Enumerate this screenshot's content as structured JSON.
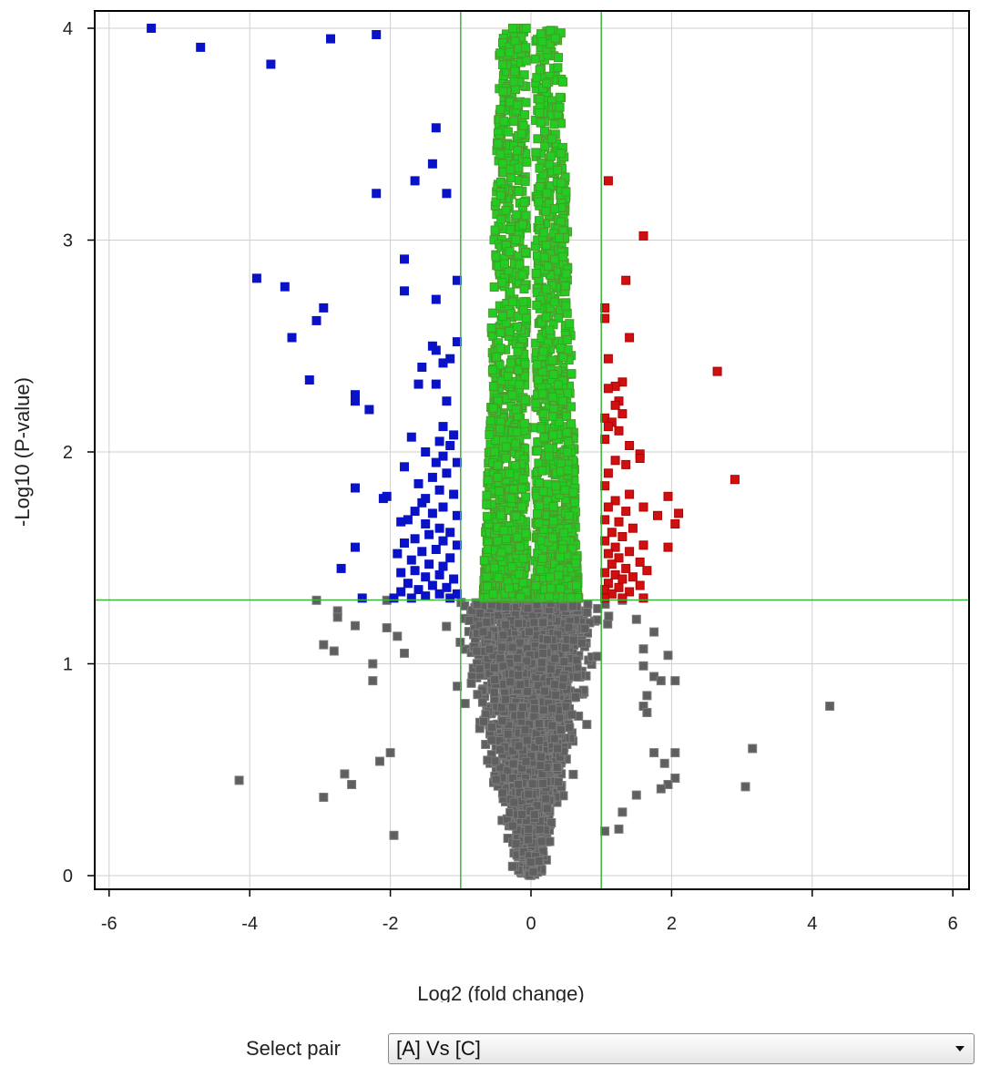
{
  "chart_data": {
    "type": "scatter",
    "title": "",
    "xlabel": "Log2 (fold change)",
    "ylabel": "-Log10 (P-value)",
    "xlim": [
      -6.2,
      6.2
    ],
    "ylim": [
      -0.05,
      4.08
    ],
    "xticks": [
      -6,
      -4,
      -2,
      0,
      2,
      4,
      6
    ],
    "yticks": [
      0,
      1,
      2,
      3,
      4
    ],
    "grid": true,
    "thresholds": {
      "log2_fold_change": [
        -1,
        1
      ],
      "neg_log10_p": 1.301
    },
    "colors": {
      "down": "#0a12c8",
      "up": "#d01010",
      "sig_small": "#22cc22",
      "not_sig": "#5f5f5f",
      "threshold_line": "#3cb43c"
    },
    "series": [
      {
        "key": "down",
        "points": [
          [
            -5.4,
            4.0
          ],
          [
            -4.7,
            3.91
          ],
          [
            -3.7,
            3.83
          ],
          [
            -2.85,
            3.95
          ],
          [
            -2.2,
            3.97
          ],
          [
            -1.35,
            3.53
          ],
          [
            -1.4,
            3.36
          ],
          [
            -1.65,
            3.28
          ],
          [
            -2.2,
            3.22
          ],
          [
            -1.2,
            3.22
          ],
          [
            -1.8,
            2.91
          ],
          [
            -1.05,
            2.81
          ],
          [
            -3.9,
            2.82
          ],
          [
            -3.5,
            2.78
          ],
          [
            -1.8,
            2.76
          ],
          [
            -1.35,
            2.72
          ],
          [
            -2.95,
            2.68
          ],
          [
            -3.05,
            2.62
          ],
          [
            -3.4,
            2.54
          ],
          [
            -1.05,
            2.52
          ],
          [
            -1.4,
            2.5
          ],
          [
            -1.35,
            2.48
          ],
          [
            -1.15,
            2.44
          ],
          [
            -1.25,
            2.42
          ],
          [
            -1.55,
            2.4
          ],
          [
            -3.15,
            2.34
          ],
          [
            -1.6,
            2.32
          ],
          [
            -1.35,
            2.32
          ],
          [
            -2.5,
            2.27
          ],
          [
            -2.5,
            2.24
          ],
          [
            -1.2,
            2.24
          ],
          [
            -2.3,
            2.2
          ],
          [
            -1.25,
            2.12
          ],
          [
            -1.1,
            2.08
          ],
          [
            -1.7,
            2.07
          ],
          [
            -1.3,
            2.05
          ],
          [
            -1.15,
            2.03
          ],
          [
            -1.5,
            2.0
          ],
          [
            -1.25,
            1.98
          ],
          [
            -1.35,
            1.95
          ],
          [
            -1.05,
            1.95
          ],
          [
            -1.8,
            1.93
          ],
          [
            -1.2,
            1.9
          ],
          [
            -1.4,
            1.88
          ],
          [
            -1.6,
            1.85
          ],
          [
            -2.5,
            1.83
          ],
          [
            -1.3,
            1.82
          ],
          [
            -1.1,
            1.8
          ],
          [
            -2.05,
            1.79
          ],
          [
            -1.5,
            1.78
          ],
          [
            -2.1,
            1.78
          ],
          [
            -1.55,
            1.76
          ],
          [
            -1.25,
            1.74
          ],
          [
            -1.65,
            1.72
          ],
          [
            -1.4,
            1.71
          ],
          [
            -1.05,
            1.7
          ],
          [
            -1.75,
            1.68
          ],
          [
            -1.85,
            1.67
          ],
          [
            -1.5,
            1.66
          ],
          [
            -1.3,
            1.64
          ],
          [
            -1.15,
            1.62
          ],
          [
            -1.45,
            1.61
          ],
          [
            -1.65,
            1.59
          ],
          [
            -1.25,
            1.58
          ],
          [
            -1.8,
            1.57
          ],
          [
            -2.5,
            1.55
          ],
          [
            -1.05,
            1.56
          ],
          [
            -1.35,
            1.54
          ],
          [
            -1.55,
            1.53
          ],
          [
            -1.9,
            1.52
          ],
          [
            -1.15,
            1.5
          ],
          [
            -1.7,
            1.49
          ],
          [
            -1.45,
            1.47
          ],
          [
            -1.25,
            1.46
          ],
          [
            -2.7,
            1.45
          ],
          [
            -1.65,
            1.44
          ],
          [
            -1.85,
            1.43
          ],
          [
            -1.3,
            1.42
          ],
          [
            -1.5,
            1.41
          ],
          [
            -1.1,
            1.4
          ],
          [
            -1.75,
            1.38
          ],
          [
            -1.4,
            1.37
          ],
          [
            -1.2,
            1.36
          ],
          [
            -1.6,
            1.35
          ],
          [
            -1.85,
            1.34
          ],
          [
            -1.3,
            1.33
          ],
          [
            -1.05,
            1.33
          ],
          [
            -1.5,
            1.32
          ],
          [
            -2.4,
            1.31
          ],
          [
            -1.7,
            1.31
          ],
          [
            -1.15,
            1.31
          ],
          [
            -1.95,
            1.31
          ]
        ]
      },
      {
        "key": "up",
        "points": [
          [
            1.1,
            3.28
          ],
          [
            1.6,
            3.02
          ],
          [
            1.35,
            2.81
          ],
          [
            1.05,
            2.68
          ],
          [
            1.05,
            2.63
          ],
          [
            1.4,
            2.54
          ],
          [
            1.1,
            2.44
          ],
          [
            2.65,
            2.38
          ],
          [
            1.3,
            2.33
          ],
          [
            1.2,
            2.31
          ],
          [
            1.1,
            2.3
          ],
          [
            1.25,
            2.24
          ],
          [
            1.2,
            2.22
          ],
          [
            1.3,
            2.18
          ],
          [
            1.05,
            2.16
          ],
          [
            1.15,
            2.14
          ],
          [
            1.1,
            2.12
          ],
          [
            1.25,
            2.1
          ],
          [
            1.05,
            2.06
          ],
          [
            1.4,
            2.03
          ],
          [
            1.55,
            1.99
          ],
          [
            1.55,
            1.97
          ],
          [
            1.2,
            1.96
          ],
          [
            1.35,
            1.94
          ],
          [
            1.1,
            1.9
          ],
          [
            2.9,
            1.87
          ],
          [
            1.05,
            1.84
          ],
          [
            1.4,
            1.8
          ],
          [
            1.95,
            1.79
          ],
          [
            1.2,
            1.77
          ],
          [
            1.1,
            1.74
          ],
          [
            1.6,
            1.74
          ],
          [
            1.35,
            1.72
          ],
          [
            2.1,
            1.71
          ],
          [
            1.8,
            1.7
          ],
          [
            1.05,
            1.68
          ],
          [
            1.25,
            1.67
          ],
          [
            2.05,
            1.66
          ],
          [
            1.45,
            1.64
          ],
          [
            1.15,
            1.62
          ],
          [
            1.3,
            1.6
          ],
          [
            1.05,
            1.58
          ],
          [
            1.6,
            1.56
          ],
          [
            1.2,
            1.55
          ],
          [
            1.95,
            1.55
          ],
          [
            1.4,
            1.53
          ],
          [
            1.1,
            1.52
          ],
          [
            1.25,
            1.5
          ],
          [
            1.55,
            1.48
          ],
          [
            1.15,
            1.47
          ],
          [
            1.35,
            1.45
          ],
          [
            1.65,
            1.44
          ],
          [
            1.05,
            1.43
          ],
          [
            1.2,
            1.42
          ],
          [
            1.45,
            1.41
          ],
          [
            1.3,
            1.4
          ],
          [
            1.1,
            1.38
          ],
          [
            1.55,
            1.37
          ],
          [
            1.25,
            1.36
          ],
          [
            1.05,
            1.35
          ],
          [
            1.4,
            1.34
          ],
          [
            1.15,
            1.33
          ],
          [
            1.6,
            1.31
          ],
          [
            1.3,
            1.31
          ],
          [
            1.05,
            1.31
          ]
        ]
      },
      {
        "key": "not_sig_outliers",
        "points": [
          [
            -3.05,
            1.3
          ],
          [
            -2.75,
            1.25
          ],
          [
            -2.75,
            1.22
          ],
          [
            -2.5,
            1.18
          ],
          [
            -2.95,
            1.09
          ],
          [
            -2.8,
            1.06
          ],
          [
            -2.25,
            1.0
          ],
          [
            -2.25,
            0.92
          ],
          [
            -4.15,
            0.45
          ],
          [
            -2.65,
            0.48
          ],
          [
            -2.55,
            0.43
          ],
          [
            -2.95,
            0.37
          ],
          [
            -2.15,
            0.54
          ],
          [
            -2.0,
            0.58
          ],
          [
            -1.95,
            0.19
          ],
          [
            -2.05,
            1.17
          ],
          [
            -2.05,
            1.3
          ],
          [
            -1.9,
            1.13
          ],
          [
            -1.8,
            1.05
          ],
          [
            1.3,
            1.3
          ],
          [
            1.5,
            1.21
          ],
          [
            1.75,
            1.15
          ],
          [
            1.6,
            1.07
          ],
          [
            1.95,
            1.04
          ],
          [
            1.6,
            0.99
          ],
          [
            1.75,
            0.94
          ],
          [
            1.85,
            0.92
          ],
          [
            2.05,
            0.92
          ],
          [
            1.65,
            0.85
          ],
          [
            1.6,
            0.8
          ],
          [
            1.65,
            0.77
          ],
          [
            4.25,
            0.8
          ],
          [
            3.15,
            0.6
          ],
          [
            3.05,
            0.42
          ],
          [
            2.05,
            0.58
          ],
          [
            1.75,
            0.58
          ],
          [
            1.9,
            0.53
          ],
          [
            2.05,
            0.46
          ],
          [
            1.95,
            0.43
          ],
          [
            1.85,
            0.41
          ],
          [
            1.5,
            0.38
          ],
          [
            1.3,
            0.3
          ],
          [
            1.25,
            0.22
          ],
          [
            1.05,
            0.21
          ]
        ]
      }
    ]
  },
  "selector": {
    "label": "Select pair",
    "value": "[A] Vs [C]"
  }
}
